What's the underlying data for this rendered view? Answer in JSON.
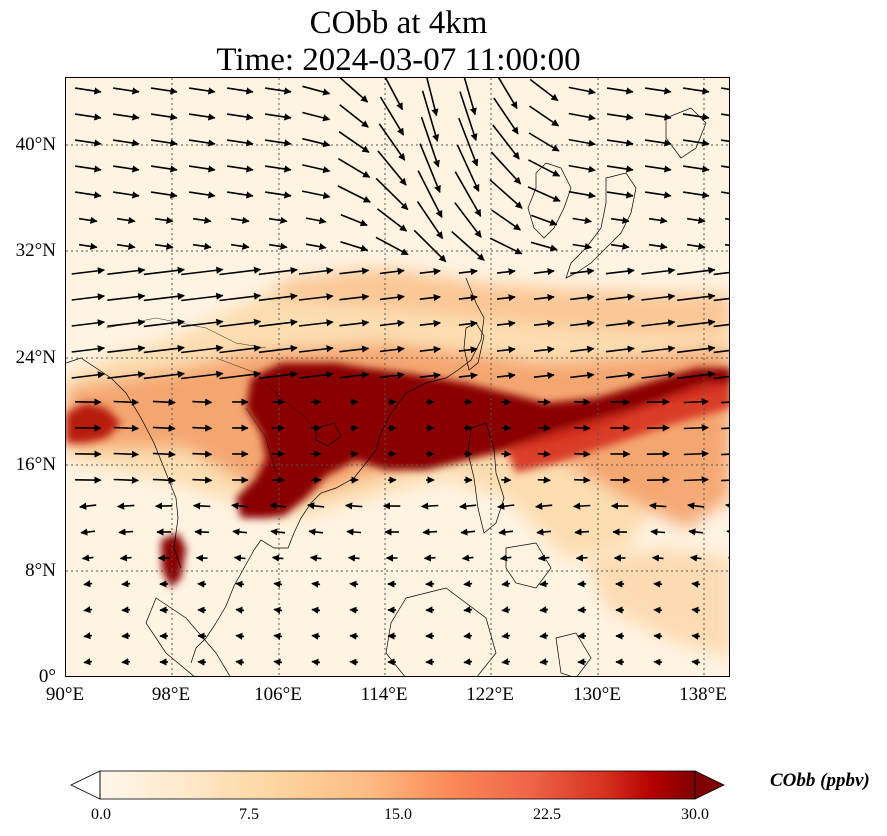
{
  "title": {
    "line1": "CObb at 4km",
    "line2": "Time: 2024-03-07 11:00:00"
  },
  "axes": {
    "x_ticks": [
      "90°E",
      "98°E",
      "106°E",
      "114°E",
      "122°E",
      "130°E",
      "138°E"
    ],
    "y_ticks": [
      "40°N",
      "32°N",
      "24°N",
      "16°N",
      "8°N",
      "0°"
    ],
    "lon_range": [
      90,
      140
    ],
    "lat_range": [
      0,
      45
    ],
    "gridlines": true
  },
  "colorbar": {
    "label": "CObb (ppbv)",
    "ticks": [
      "0.0",
      "7.5",
      "15.0",
      "22.5",
      "30.0"
    ],
    "range": [
      0,
      30
    ],
    "extend": "both",
    "colormap": "OrRd"
  },
  "colors": {
    "background": "#fff3e2",
    "high": "#7f0000",
    "mid": "#e34a33",
    "low": "#fdd49e"
  }
}
